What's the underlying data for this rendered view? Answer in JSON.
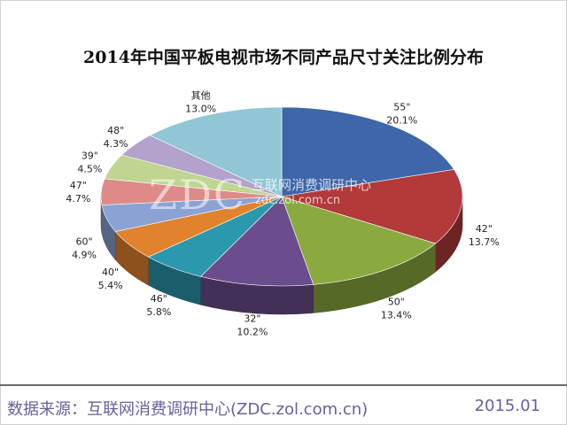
{
  "chart_data": {
    "type": "pie",
    "title": "2014年中国平板电视市场不同产品尺寸关注比例分布",
    "slices": [
      {
        "label": "55\"",
        "value": 20.1,
        "value_text": "20.1%",
        "color": "#3e66a8"
      },
      {
        "label": "42\"",
        "value": 13.7,
        "value_text": "13.7%",
        "color": "#b23a3a"
      },
      {
        "label": "50\"",
        "value": 13.4,
        "value_text": "13.4%",
        "color": "#8aaa3f"
      },
      {
        "label": "32\"",
        "value": 10.2,
        "value_text": "10.2%",
        "color": "#6b4d8e"
      },
      {
        "label": "46\"",
        "value": 5.8,
        "value_text": "5.8%",
        "color": "#2c98ad"
      },
      {
        "label": "40\"",
        "value": 5.4,
        "value_text": "5.4%",
        "color": "#e1822d"
      },
      {
        "label": "60\"",
        "value": 4.9,
        "value_text": "4.9%",
        "color": "#8aa3d4"
      },
      {
        "label": "47\"",
        "value": 4.7,
        "value_text": "4.7%",
        "color": "#de8a88"
      },
      {
        "label": "39\"",
        "value": 4.5,
        "value_text": "4.5%",
        "color": "#c0d590"
      },
      {
        "label": "48\"",
        "value": 4.3,
        "value_text": "4.3%",
        "color": "#b2a2cc"
      },
      {
        "label": "其他",
        "value": 13.0,
        "value_text": "13.0%",
        "color": "#91c6d4"
      }
    ]
  },
  "watermark": {
    "logo": "ZDC",
    "name": "互联网消费调研中心",
    "url": "zdc.zol.com.cn"
  },
  "footer": {
    "source": "数据来源：互联网消费调研中心(ZDC.zol.com.cn)",
    "date": "2015.01"
  }
}
